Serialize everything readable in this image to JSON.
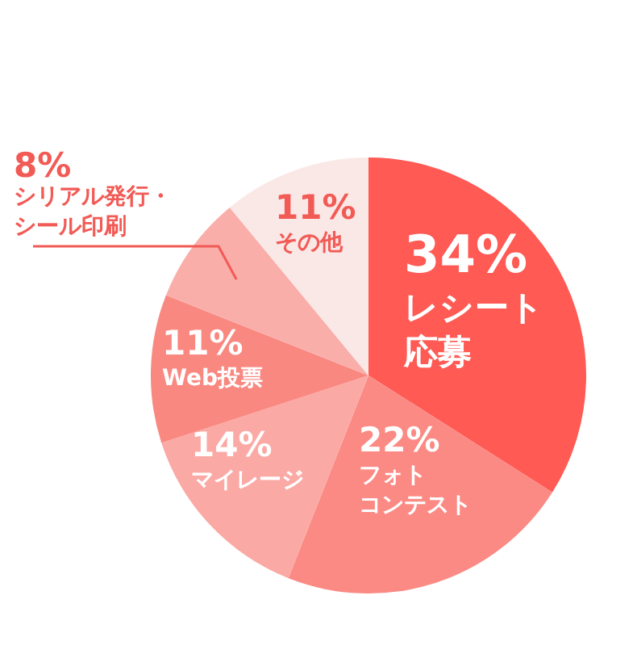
{
  "chart_data": {
    "type": "pie",
    "categories": [
      "レシート応募",
      "フォトコンテスト",
      "マイレージ",
      "Web投票",
      "シリアル発行・シール印刷",
      "その他"
    ],
    "values": [
      34,
      22,
      14,
      11,
      8,
      11
    ],
    "value_labels": [
      "34%",
      "22%",
      "14%",
      "11%",
      "8%",
      "11%"
    ],
    "colors": [
      "#ff5a54",
      "#fb8a84",
      "#fba9a5",
      "#f98880",
      "#f9aeaa",
      "#fae8e6"
    ]
  }
}
